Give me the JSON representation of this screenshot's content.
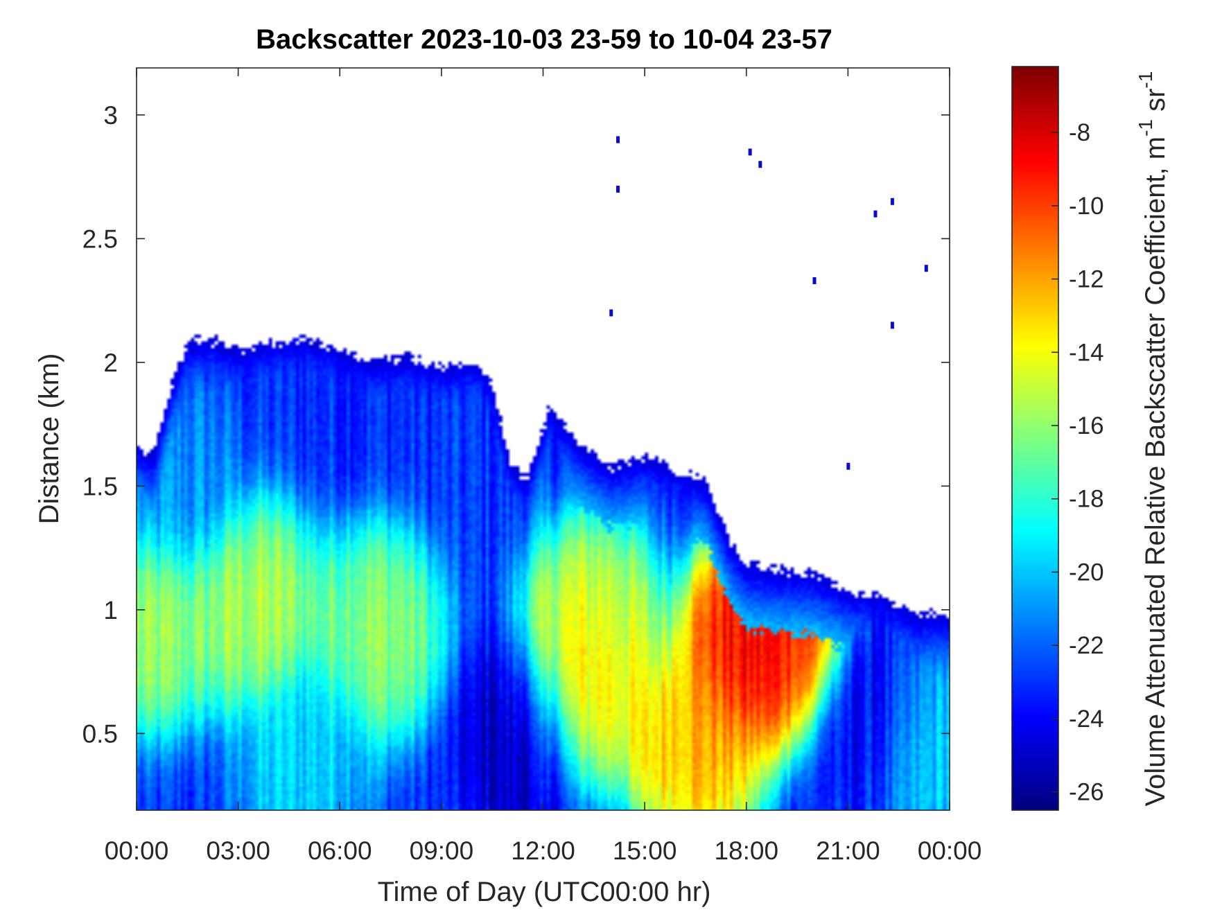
{
  "chart_data": {
    "type": "heatmap",
    "title": "Backscatter 2023-10-03 23-59 to 10-04 23-57",
    "xlabel": "Time of Day (UTC00:00 hr)",
    "ylabel": "Distance (km)",
    "xlim": [
      0,
      24
    ],
    "ylim": [
      0.19,
      3.19
    ],
    "x_ticks": [
      0,
      3,
      6,
      9,
      12,
      15,
      18,
      21,
      24
    ],
    "x_tick_labels": [
      "00:00",
      "03:00",
      "06:00",
      "09:00",
      "12:00",
      "15:00",
      "18:00",
      "21:00",
      "00:00"
    ],
    "y_ticks": [
      0.5,
      1,
      1.5,
      2,
      2.5,
      3
    ],
    "y_tick_labels": [
      "0.5",
      "1",
      "1.5",
      "2",
      "2.5",
      "3"
    ],
    "colorbar": {
      "label_main": "Volume Attenuated Relative Backscatter Coefficient, m",
      "label_sup1": "-1",
      "label_mid": " sr",
      "label_sup2": "-1",
      "range": [
        -26.5,
        -6.2
      ],
      "ticks": [
        -26,
        -24,
        -22,
        -20,
        -18,
        -16,
        -14,
        -12,
        -10,
        -8
      ],
      "tick_labels": [
        "-26",
        "-24",
        "-22",
        "-20",
        "-18",
        "-16",
        "-14",
        "-12",
        "-10",
        "-8"
      ],
      "colormap": "jet"
    },
    "layer_top_km": [
      {
        "t": 0.0,
        "z": 1.68
      },
      {
        "t": 0.5,
        "z": 1.62
      },
      {
        "t": 1.0,
        "z": 1.9
      },
      {
        "t": 1.5,
        "z": 2.08
      },
      {
        "t": 2.0,
        "z": 2.1
      },
      {
        "t": 3.0,
        "z": 2.05
      },
      {
        "t": 4.0,
        "z": 2.08
      },
      {
        "t": 5.0,
        "z": 2.1
      },
      {
        "t": 6.0,
        "z": 2.05
      },
      {
        "t": 7.0,
        "z": 2.0
      },
      {
        "t": 8.0,
        "z": 2.02
      },
      {
        "t": 9.0,
        "z": 1.98
      },
      {
        "t": 10.0,
        "z": 2.0
      },
      {
        "t": 10.5,
        "z": 1.92
      },
      {
        "t": 11.0,
        "z": 1.6
      },
      {
        "t": 11.5,
        "z": 1.52
      },
      {
        "t": 12.2,
        "z": 1.82
      },
      {
        "t": 13.0,
        "z": 1.68
      },
      {
        "t": 14.0,
        "z": 1.58
      },
      {
        "t": 15.0,
        "z": 1.62
      },
      {
        "t": 16.0,
        "z": 1.56
      },
      {
        "t": 16.8,
        "z": 1.52
      },
      {
        "t": 17.5,
        "z": 1.28
      },
      {
        "t": 18.0,
        "z": 1.18
      },
      {
        "t": 19.0,
        "z": 1.16
      },
      {
        "t": 20.0,
        "z": 1.15
      },
      {
        "t": 20.5,
        "z": 1.12
      },
      {
        "t": 21.0,
        "z": 1.08
      },
      {
        "t": 22.0,
        "z": 1.06
      },
      {
        "t": 23.0,
        "z": 0.98
      },
      {
        "t": 24.0,
        "z": 0.98
      }
    ],
    "values_db": [
      {
        "t": 0.5,
        "z": 0.95,
        "v": -15.5
      },
      {
        "t": 3.5,
        "z": 1.0,
        "v": -15.0
      },
      {
        "t": 7.0,
        "z": 0.9,
        "v": -15.5
      },
      {
        "t": 5.0,
        "z": 0.4,
        "v": -19.5
      },
      {
        "t": 1.0,
        "z": 1.5,
        "v": -21.0
      },
      {
        "t": 11.5,
        "z": 0.5,
        "v": -25.5
      },
      {
        "t": 13.5,
        "z": 0.95,
        "v": -14.5
      },
      {
        "t": 13.2,
        "z": 0.7,
        "v": -12.0
      },
      {
        "t": 16.5,
        "z": 0.45,
        "v": -11.5
      },
      {
        "t": 18.0,
        "z": 0.85,
        "v": -8.0
      },
      {
        "t": 19.0,
        "z": 0.95,
        "v": -8.5
      },
      {
        "t": 22.0,
        "z": 0.6,
        "v": -24.5
      },
      {
        "t": 23.5,
        "z": 0.5,
        "v": -19.0
      }
    ],
    "isolated_points": [
      {
        "t": 14.2,
        "z": 2.9
      },
      {
        "t": 14.2,
        "z": 2.7
      },
      {
        "t": 14.0,
        "z": 2.2
      },
      {
        "t": 18.1,
        "z": 2.85
      },
      {
        "t": 18.4,
        "z": 2.8
      },
      {
        "t": 21.8,
        "z": 2.6
      },
      {
        "t": 22.3,
        "z": 2.65
      },
      {
        "t": 20.0,
        "z": 2.33
      },
      {
        "t": 22.3,
        "z": 2.15
      },
      {
        "t": 23.3,
        "z": 2.38
      },
      {
        "t": 21.0,
        "z": 1.58
      }
    ]
  }
}
